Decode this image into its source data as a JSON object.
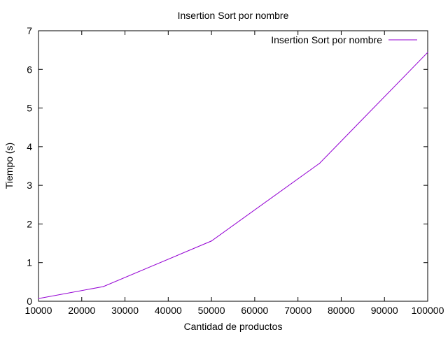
{
  "chart_data": {
    "type": "line",
    "title": "Insertion Sort por nombre",
    "xlabel": "Cantidad de productos",
    "ylabel": "Tiempo (s)",
    "xlim": [
      10000,
      100000
    ],
    "ylim": [
      0,
      7
    ],
    "x_ticks": [
      10000,
      20000,
      30000,
      40000,
      50000,
      60000,
      70000,
      80000,
      90000,
      100000
    ],
    "y_ticks": [
      0,
      1,
      2,
      3,
      4,
      5,
      6,
      7
    ],
    "grid": false,
    "legend_position": "top-right",
    "series": [
      {
        "name": "Insertion Sort por nombre",
        "color": "#9400d3",
        "x": [
          10000,
          25000,
          50000,
          75000,
          100000
        ],
        "y": [
          0.07,
          0.38,
          1.56,
          3.57,
          6.44
        ]
      }
    ]
  }
}
